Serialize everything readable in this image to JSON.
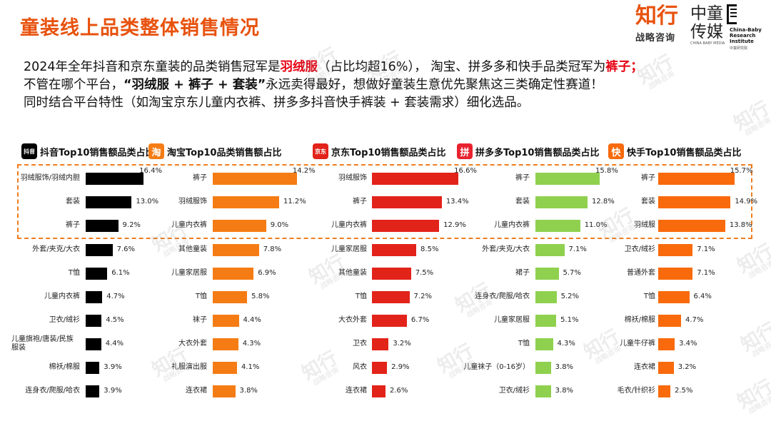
{
  "title": "童装线上品类整体销售情况",
  "logos": {
    "zhixing_big": "知行",
    "zhixing_small": "战略咨询",
    "ztcm_line1": "中童",
    "ztcm_line2": "传媒",
    "ztcm_sub": "CHINA BABY MEDIA",
    "cbri_line1": "China-Baby",
    "cbri_line2": "Research",
    "cbri_line3": "Institute",
    "cbri_sub": "中童研究院"
  },
  "watermark": {
    "big": "知行",
    "small": "战略咨询"
  },
  "intro": {
    "l1_a": "2024年全年抖音和京东童装的品类销售冠军是",
    "l1_b": "羽绒服",
    "l1_c": "（占比均超16%），  淘宝、拼多多和快手品类冠军为",
    "l1_d": "裤子；",
    "l2_a": "不管在哪个平台，",
    "l2_b": "“羽绒服 + 裤子 + 套装”",
    "l2_c": "永远卖得最好，想做好童装生意优先聚焦这三类确定性赛道！",
    "l3": "同时结合平台特性（如淘宝京东儿童内衣裤、拼多多抖音快手裤装 + 套装需求）细化选品。"
  },
  "colors": {
    "douyin": "#000000",
    "taobao": "#f57c14",
    "jd": "#e2231a",
    "pdd": "#8fd14f",
    "kuaishou": "#f96a0c",
    "title": "#e8520e",
    "highlight_box": "#f07d1e"
  },
  "chart_data": [
    {
      "type": "bar",
      "orientation": "horizontal",
      "title": "抖音Top10销售额品类占比",
      "icon": "douyin-icon",
      "icon_text": "抖音",
      "categories": [
        "羽绒服饰/羽绒内胆",
        "套装",
        "裤子",
        "外套/夹克/大衣",
        "T恤",
        "儿童内衣裤",
        "卫衣/绒衫",
        "儿童旗袍/唐装/民族服装",
        "棉袄/棉服",
        "连身衣/爬服/哈衣"
      ],
      "values": [
        16.4,
        13.0,
        9.2,
        7.6,
        6.1,
        4.7,
        4.5,
        4.4,
        3.9,
        3.9
      ],
      "labels": [
        "16.4%",
        "13.0%",
        "9.2%",
        "7.6%",
        "6.1%",
        "4.7%",
        "4.5%",
        "4.4%",
        "3.9%",
        "3.9%"
      ],
      "unit": "%",
      "color": "#000000"
    },
    {
      "type": "bar",
      "orientation": "horizontal",
      "title": "淘宝Top10品类销售额占比",
      "icon": "taobao-icon",
      "icon_text": "淘",
      "categories": [
        "裤子",
        "羽绒服饰",
        "儿童内衣裤",
        "其他童装",
        "儿童家居服",
        "T恤",
        "袜子",
        "大衣外套",
        "礼服演出服",
        "连衣裙"
      ],
      "values": [
        14.2,
        11.2,
        9.0,
        7.8,
        6.9,
        5.8,
        4.4,
        4.3,
        4.1,
        3.8
      ],
      "labels": [
        "14.2%",
        "11.2%",
        "9.0%",
        "7.8%",
        "6.9%",
        "5.8%",
        "4.4%",
        "4.3%",
        "4.1%",
        "3.8%"
      ],
      "unit": "%",
      "color": "#f57c14"
    },
    {
      "type": "bar",
      "orientation": "horizontal",
      "title": "京东Top10销售额品类占比",
      "icon": "jd-icon",
      "icon_text": "京东",
      "categories": [
        "羽绒服饰",
        "裤子",
        "儿童内衣裤",
        "儿童家居服",
        "其他童装",
        "T恤",
        "大衣外套",
        "卫衣",
        "风衣",
        "连衣裙"
      ],
      "values": [
        16.6,
        13.4,
        12.9,
        8.5,
        7.5,
        7.2,
        6.7,
        3.2,
        2.9,
        2.6
      ],
      "labels": [
        "16.6%",
        "13.4%",
        "12.9%",
        "8.5%",
        "7.5%",
        "7.2%",
        "6.7%",
        "3.2%",
        "2.9%",
        "2.6%"
      ],
      "unit": "%",
      "color": "#e2231a"
    },
    {
      "type": "bar",
      "orientation": "horizontal",
      "title": "拼多多Top10销售额品类占比",
      "icon": "pdd-icon",
      "icon_text": "拼",
      "categories": [
        "裤子",
        "套装",
        "儿童内衣裤",
        "外套/夹克/大衣",
        "裙子",
        "连身衣/爬服/哈衣",
        "儿童家居服",
        "T恤",
        "儿童袜子（0-16岁）",
        "卫衣/绒衫"
      ],
      "values": [
        15.8,
        12.8,
        11.0,
        7.1,
        5.7,
        5.2,
        5.1,
        4.3,
        3.8,
        3.8
      ],
      "labels": [
        "15.8%",
        "12.8%",
        "11.0%",
        "7.1%",
        "5.7%",
        "5.2%",
        "5.1%",
        "4.3%",
        "3.8%",
        "3.8%"
      ],
      "unit": "%",
      "color": "#8fd14f"
    },
    {
      "type": "bar",
      "orientation": "horizontal",
      "title": "快手Top10销售额品类占比",
      "icon": "kuaishou-icon",
      "icon_text": "快",
      "categories": [
        "裤子",
        "套装",
        "羽绒服",
        "卫衣/绒衫",
        "普通外套",
        "T恤",
        "棉袄/棉服",
        "儿童牛仔裤",
        "连衣裙",
        "毛衣/针织衫"
      ],
      "values": [
        15.7,
        14.9,
        13.8,
        7.1,
        7.1,
        6.4,
        4.7,
        3.4,
        3.2,
        2.5
      ],
      "labels": [
        "15.7%",
        "14.9%",
        "13.8%",
        "7.1%",
        "7.1%",
        "6.4%",
        "4.7%",
        "3.4%",
        "3.2%",
        "2.5%"
      ],
      "unit": "%",
      "color": "#f96a0c"
    }
  ]
}
